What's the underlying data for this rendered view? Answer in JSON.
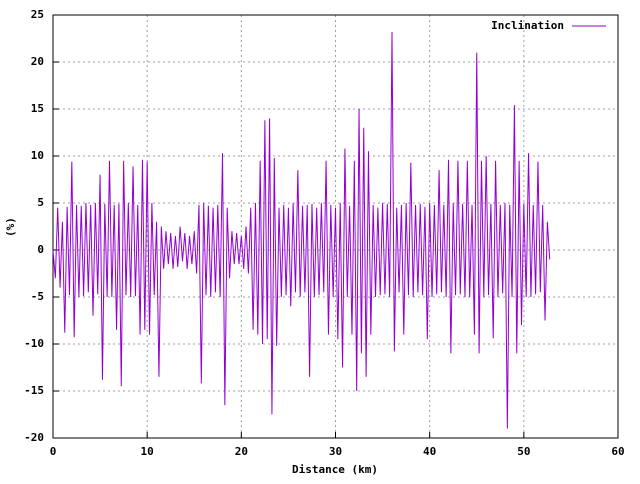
{
  "chart_data": {
    "type": "line",
    "xlabel": "Distance (km)",
    "ylabel": "(%)",
    "xlim": [
      0,
      60
    ],
    "ylim": [
      -20,
      25
    ],
    "xticks": [
      0,
      10,
      20,
      30,
      40,
      50,
      60
    ],
    "yticks": [
      -20,
      -15,
      -10,
      -5,
      0,
      5,
      10,
      15,
      20,
      25
    ],
    "grid": true,
    "legend": "upper right",
    "x": [
      0,
      0.25,
      0.5,
      0.75,
      1,
      1.25,
      1.5,
      1.75,
      2,
      2.25,
      2.5,
      2.75,
      3,
      3.25,
      3.5,
      3.75,
      4,
      4.25,
      4.5,
      4.75,
      5,
      5.25,
      5.5,
      5.75,
      6,
      6.25,
      6.5,
      6.75,
      7,
      7.25,
      7.5,
      7.75,
      8,
      8.25,
      8.5,
      8.75,
      9,
      9.25,
      9.5,
      9.75,
      10,
      10.25,
      10.5,
      10.75,
      11,
      11.25,
      11.5,
      11.75,
      12,
      12.25,
      12.5,
      12.75,
      13,
      13.25,
      13.5,
      13.75,
      14,
      14.25,
      14.5,
      14.75,
      15,
      15.25,
      15.5,
      15.75,
      16,
      16.25,
      16.5,
      16.75,
      17,
      17.25,
      17.5,
      17.75,
      18,
      18.25,
      18.5,
      18.75,
      19,
      19.25,
      19.5,
      19.75,
      20,
      20.25,
      20.5,
      20.75,
      21,
      21.25,
      21.5,
      21.75,
      22,
      22.25,
      22.5,
      22.75,
      23,
      23.25,
      23.5,
      23.75,
      24,
      24.25,
      24.5,
      24.75,
      25,
      25.25,
      25.5,
      25.75,
      26,
      26.25,
      26.5,
      26.75,
      27,
      27.25,
      27.5,
      27.75,
      28,
      28.25,
      28.5,
      28.75,
      29,
      29.25,
      29.5,
      29.75,
      30,
      30.25,
      30.5,
      30.75,
      31,
      31.25,
      31.5,
      31.75,
      32,
      32.25,
      32.5,
      32.75,
      33,
      33.25,
      33.5,
      33.75,
      34,
      34.25,
      34.5,
      34.75,
      35,
      35.25,
      35.5,
      35.75,
      36,
      36.25,
      36.5,
      36.75,
      37,
      37.25,
      37.5,
      37.75,
      38,
      38.25,
      38.5,
      38.75,
      39,
      39.25,
      39.5,
      39.75,
      40,
      40.25,
      40.5,
      40.75,
      41,
      41.25,
      41.5,
      41.75,
      42,
      42.25,
      42.5,
      42.75,
      43,
      43.25,
      43.5,
      43.75,
      44,
      44.25,
      44.5,
      44.75,
      45,
      45.25,
      45.5,
      45.75,
      46,
      46.25,
      46.5,
      46.75,
      47,
      47.25,
      47.5,
      47.75,
      48,
      48.25,
      48.5,
      48.75,
      49,
      49.25,
      49.5,
      49.75,
      50,
      50.25,
      50.5,
      50.75,
      51,
      51.25,
      51.5,
      51.75,
      52,
      52.25,
      52.5,
      52.75
    ],
    "series": [
      {
        "name": "Inclination",
        "color": "#9400d3",
        "values": [
          0,
          -3,
          4.5,
          -4,
          3,
          -8.8,
          4.6,
          -4.8,
          9.4,
          -9.3,
          4.8,
          -5,
          4.7,
          -4.9,
          5,
          -4.5,
          4.8,
          -7,
          5,
          -4.7,
          8,
          -13.8,
          4.9,
          -5,
          9.5,
          -5,
          4.8,
          -8.5,
          4.9,
          -14.5,
          9.5,
          -4.8,
          5,
          -5,
          8.9,
          -4.9,
          4.8,
          -9,
          9.6,
          -8.5,
          9.4,
          -9,
          5,
          -4.8,
          3,
          -13.5,
          2.5,
          -2,
          2,
          -1.5,
          1.8,
          -2,
          1.5,
          -1.8,
          2.5,
          -1.2,
          1.8,
          -2,
          1.5,
          -1.5,
          2,
          -2.5,
          4.8,
          -14.2,
          5,
          -4.8,
          4.7,
          -5,
          4.5,
          -4.5,
          4.8,
          -5,
          10.3,
          -16.5,
          4.5,
          -3,
          2,
          -1.5,
          1.8,
          -1.5,
          1.5,
          -2,
          2.5,
          -2.5,
          4.5,
          -8.5,
          5,
          -9,
          9.5,
          -10,
          13.8,
          -9.5,
          14,
          -17.5,
          9.8,
          -10.2,
          4.5,
          -5,
          4.8,
          -4.8,
          4.5,
          -6,
          5,
          -4.5,
          8.5,
          -5,
          4.7,
          -4.5,
          4.8,
          -13.5,
          4.9,
          -5,
          4.5,
          -4.8,
          5,
          -4.5,
          9.5,
          -9,
          4.8,
          -5,
          4.5,
          -9.5,
          5,
          -12.5,
          10.8,
          -5,
          4.7,
          -9,
          9.5,
          -15,
          15,
          -11,
          13,
          -13.5,
          10.5,
          -9,
          4.8,
          -5,
          4.5,
          -4.8,
          5,
          -4.7,
          4.9,
          -5,
          23.2,
          -10.8,
          4.5,
          -4.5,
          4.8,
          -9,
          5,
          -4.8,
          9.3,
          -5,
          4.8,
          -4.5,
          4.9,
          -4.8,
          4.6,
          -9.5,
          5,
          -5,
          4.8,
          -4.7,
          8.5,
          -4.5,
          4.8,
          -5,
          9.6,
          -11,
          5,
          -4.8,
          9.5,
          -4.7,
          4.9,
          -5,
          9.5,
          -5,
          4.8,
          -9,
          21,
          -11,
          9.5,
          -5,
          10,
          -4.8,
          4.9,
          -9.4,
          9.5,
          -5,
          4.8,
          -4.6,
          5,
          -19,
          4.8,
          -5,
          15.4,
          -11,
          9.5,
          -8,
          4.9,
          -5,
          10.3,
          -5,
          4.8,
          -4.7,
          9.4,
          -4.5,
          4.8,
          -7.5,
          3,
          -1
        ]
      }
    ]
  }
}
